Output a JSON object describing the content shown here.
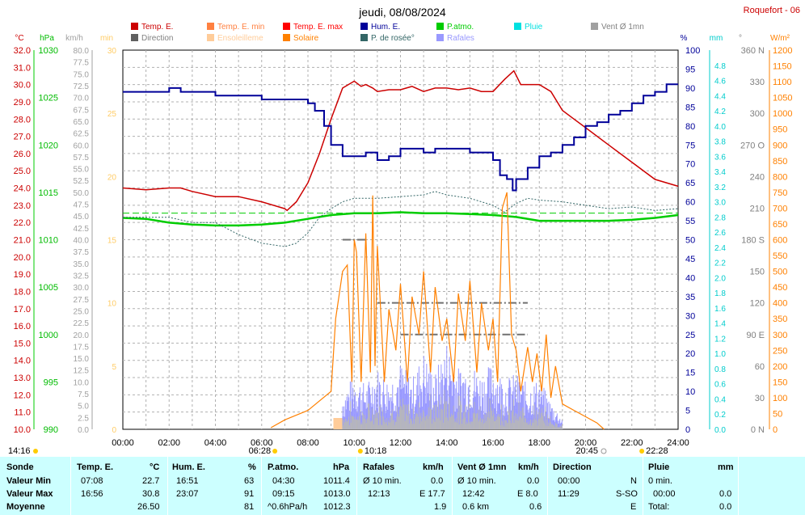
{
  "chart_data": {
    "type": "line",
    "title": "jeudi, 08/08/2024",
    "station": "Roquefort - 06",
    "x_range": [
      "00:00",
      "24:00"
    ],
    "x_ticks": [
      "00:00",
      "02:00",
      "04:00",
      "06:00",
      "08:00",
      "10:00",
      "12:00",
      "14:00",
      "16:00",
      "18:00",
      "20:00",
      "22:00",
      "24:00"
    ],
    "axes": {
      "temp": {
        "unit": "°C",
        "range": [
          10,
          32
        ],
        "ticks": [
          "32.0",
          "31.0",
          "30.0",
          "29.0",
          "28.0",
          "27.0",
          "26.0",
          "25.0",
          "24.0",
          "23.0",
          "22.0",
          "21.0",
          "20.0",
          "19.0",
          "18.0",
          "17.0",
          "16.0",
          "15.0",
          "14.0",
          "13.0",
          "12.0",
          "11.0",
          "10.0"
        ]
      },
      "pressure": {
        "unit": "hPa",
        "range": [
          990,
          1030
        ],
        "ticks": [
          "1030",
          "1025",
          "1020",
          "1015",
          "1010",
          "1005",
          "1000",
          "995",
          "990"
        ]
      },
      "wind": {
        "unit": "km/h",
        "range": [
          0,
          80
        ],
        "ticks": [
          "80.0",
          "77.5",
          "75.0",
          "72.5",
          "70.0",
          "67.5",
          "65.0",
          "62.5",
          "60.0",
          "57.5",
          "55.0",
          "52.5",
          "50.0",
          "47.5",
          "45.0",
          "42.5",
          "40.0",
          "37.5",
          "35.0",
          "32.5",
          "30.0",
          "27.5",
          "25.0",
          "22.5",
          "20.0",
          "17.5",
          "15.0",
          "12.5",
          "10.0",
          "7.5",
          "5.0",
          "2.5",
          "0.0"
        ]
      },
      "sunshine_min": {
        "unit": "min",
        "range": [
          0,
          30
        ],
        "ticks": [
          "30",
          "25",
          "20",
          "15",
          "10",
          "5",
          "0"
        ]
      },
      "humidity": {
        "unit": "%",
        "range": [
          0,
          100
        ],
        "ticks": [
          "100",
          "95",
          "90",
          "85",
          "80",
          "75",
          "70",
          "65",
          "60",
          "55",
          "50",
          "45",
          "40",
          "35",
          "30",
          "25",
          "20",
          "15",
          "10",
          "5",
          "0"
        ]
      },
      "rain": {
        "unit": "mm",
        "range": [
          0,
          5
        ],
        "ticks": [
          "4.8",
          "4.6",
          "4.4",
          "4.2",
          "4.0",
          "3.8",
          "3.6",
          "3.4",
          "3.2",
          "3.0",
          "2.8",
          "2.6",
          "2.4",
          "2.2",
          "2.0",
          "1.8",
          "1.6",
          "1.4",
          "1.2",
          "1.0",
          "0.8",
          "0.6",
          "0.4",
          "0.2",
          "0.0"
        ]
      },
      "direction": {
        "unit": "°",
        "ticks": [
          "360 N",
          "330",
          "300",
          "270 O",
          "240",
          "210",
          "180 S",
          "150",
          "120",
          "90 E",
          "60",
          "30",
          "0 N"
        ]
      },
      "solar": {
        "unit": "W/m²",
        "range": [
          0,
          1200
        ],
        "ticks": [
          "1200",
          "1150",
          "1100",
          "1050",
          "1000",
          "950",
          "900",
          "850",
          "800",
          "750",
          "700",
          "650",
          "600",
          "550",
          "500",
          "450",
          "400",
          "350",
          "300",
          "250",
          "200",
          "150",
          "100",
          "50",
          "0"
        ]
      }
    },
    "legend": [
      {
        "label": "Temp. E.",
        "color": "#cc0000"
      },
      {
        "label": "Temp. E. min",
        "color": "#ff8040"
      },
      {
        "label": "Temp. E. max",
        "color": "#ff0000"
      },
      {
        "label": "Hum. E.",
        "color": "#000099"
      },
      {
        "label": "P.atmo.",
        "color": "#00cc00"
      },
      {
        "label": "Pluie",
        "color": "#00e0e0"
      },
      {
        "label": "Vent Ø 1mn",
        "color": "#a0a0a0"
      },
      {
        "label": "Direction",
        "color": "#606060"
      },
      {
        "label": "Ensoleilleme",
        "color": "#ffcc99"
      },
      {
        "label": "Solaire",
        "color": "#ff8000"
      },
      {
        "label": "P. de rosée°",
        "color": "#336666"
      },
      {
        "label": "Rafales",
        "color": "#9999ff"
      }
    ],
    "series": [
      {
        "name": "Temp. E.",
        "axis": "temp",
        "color": "#cc0000",
        "x": [
          0,
          1,
          2,
          2.5,
          3,
          4,
          5,
          6,
          7,
          7.1,
          7.5,
          8,
          8.5,
          9,
          9.5,
          10,
          10.3,
          10.5,
          10.8,
          11,
          11.5,
          12,
          12.5,
          13,
          13.5,
          14,
          14.5,
          15,
          15.5,
          16,
          16.5,
          16.9,
          17.2,
          17.5,
          18,
          18.5,
          19,
          19.5,
          20,
          21,
          22,
          23,
          24
        ],
        "y": [
          24.0,
          23.9,
          24.0,
          24.0,
          23.8,
          23.5,
          23.5,
          23.2,
          22.8,
          22.7,
          23.2,
          24.3,
          26.0,
          28.0,
          29.8,
          30.2,
          29.9,
          30.0,
          29.8,
          29.6,
          29.7,
          29.7,
          29.9,
          29.6,
          29.8,
          29.8,
          29.7,
          29.8,
          29.6,
          29.6,
          30.3,
          30.8,
          30.0,
          30.0,
          30.0,
          29.6,
          28.5,
          28.0,
          27.5,
          26.5,
          25.5,
          24.5,
          24.1
        ]
      },
      {
        "name": "Hum. E.",
        "axis": "humidity",
        "color": "#000099",
        "x": [
          0,
          1,
          1.8,
          2,
          2.5,
          3,
          3.5,
          4,
          5,
          6,
          7,
          8,
          8.3,
          8.7,
          9,
          9.5,
          10,
          10.5,
          11,
          11.5,
          12,
          12.5,
          13,
          13.5,
          14,
          14.5,
          15,
          15.5,
          16,
          16.3,
          16.6,
          16.85,
          17,
          17.5,
          18,
          18.5,
          19,
          19.5,
          20,
          20.5,
          21,
          21.5,
          22,
          22.5,
          23,
          23.5,
          24
        ],
        "y": [
          89,
          89,
          89,
          90,
          89,
          89,
          89,
          88,
          88,
          87,
          87,
          86,
          84,
          80,
          75,
          72,
          72,
          73,
          71,
          72,
          74,
          74,
          73,
          74,
          74,
          74,
          73,
          73,
          71,
          67,
          66,
          63,
          66,
          69,
          72,
          73,
          75,
          77,
          80,
          81,
          83,
          84,
          86,
          88,
          89,
          91,
          91
        ]
      },
      {
        "name": "P.atmo.",
        "axis": "pressure",
        "color": "#00cc00",
        "x": [
          0,
          1,
          2,
          3,
          4,
          5,
          6,
          7,
          8,
          9,
          10,
          11,
          12,
          13,
          14,
          15,
          16,
          17,
          18,
          19,
          20,
          21,
          22,
          23,
          24
        ],
        "y": [
          1012.3,
          1012.2,
          1011.8,
          1011.6,
          1011.5,
          1011.5,
          1011.6,
          1011.8,
          1012.2,
          1012.6,
          1012.8,
          1012.8,
          1012.9,
          1012.8,
          1012.8,
          1012.7,
          1012.6,
          1012.4,
          1012.0,
          1012.0,
          1012.0,
          1012.0,
          1012.1,
          1012.3,
          1012.6
        ]
      },
      {
        "name": "P. de rosée°",
        "axis": "temp",
        "color": "#336666",
        "x": [
          0,
          1,
          2,
          3,
          4,
          5,
          6,
          7,
          7.5,
          8,
          8.5,
          9,
          9.5,
          10,
          11,
          12,
          13,
          13.5,
          14,
          15,
          16,
          16.5,
          17,
          17.5,
          18,
          19,
          20,
          21,
          22,
          23,
          24
        ],
        "y": [
          22.3,
          22.3,
          22.3,
          22.0,
          22.0,
          21.3,
          20.8,
          20.6,
          20.8,
          21.4,
          22.3,
          22.8,
          23.2,
          23.4,
          23.4,
          23.5,
          23.6,
          23.8,
          23.6,
          23.4,
          23.0,
          22.6,
          23.1,
          23.4,
          23.3,
          23.2,
          23.0,
          22.8,
          22.9,
          22.7,
          22.8
        ]
      },
      {
        "name": "Solaire",
        "axis": "solar",
        "color": "#ff8000",
        "x": [
          6.4,
          7,
          8,
          9,
          9.2,
          9.5,
          9.7,
          9.9,
          10.0,
          10.1,
          10.3,
          10.5,
          10.7,
          10.8,
          10.9,
          11.0,
          11.3,
          11.5,
          11.8,
          12.0,
          12.3,
          12.5,
          12.8,
          13.0,
          13.3,
          13.5,
          13.8,
          14.0,
          14.3,
          14.5,
          14.8,
          15.0,
          15.3,
          15.5,
          15.8,
          16.0,
          16.2,
          16.4,
          16.6,
          16.8,
          17.0,
          17.2,
          17.5,
          17.7,
          17.9,
          18.1,
          18.3,
          18.5,
          18.7,
          19,
          19.5,
          20,
          20.5,
          20.8
        ],
        "y": [
          5,
          30,
          60,
          120,
          350,
          500,
          520,
          150,
          600,
          560,
          150,
          620,
          180,
          740,
          200,
          580,
          150,
          380,
          250,
          460,
          150,
          420,
          300,
          500,
          180,
          450,
          280,
          350,
          150,
          430,
          280,
          470,
          180,
          400,
          250,
          350,
          150,
          700,
          750,
          300,
          250,
          120,
          260,
          150,
          240,
          120,
          300,
          100,
          200,
          80,
          60,
          40,
          20,
          0
        ]
      },
      {
        "name": "Rafales",
        "axis": "wind",
        "color": "#9999ff",
        "x": [
          9.5,
          10,
          10.5,
          11,
          11.5,
          12,
          12.5,
          13,
          13.5,
          14,
          14.5,
          15,
          15.5,
          16,
          16.5,
          17,
          17.5,
          18,
          18.5,
          19
        ],
        "y": [
          6.5,
          10,
          8,
          11,
          9,
          12,
          9,
          14,
          10,
          16,
          11,
          12,
          10,
          12,
          9,
          10,
          8,
          9,
          5,
          2
        ]
      }
    ],
    "reference_line": {
      "name": "P.atmo. reference",
      "axis": "pressure",
      "value": 1012.8,
      "color": "#00cc00"
    },
    "sun_markers": {
      "sunrise": "06:28",
      "sunset": "20:45",
      "noon": "10:18",
      "moonset": "22:28",
      "left_time": "14:16"
    }
  },
  "summary": {
    "sonde": {
      "header": "Sonde",
      "rows": [
        "Valeur Min",
        "Valeur Max",
        "Moyenne"
      ]
    },
    "temp": {
      "header": "Temp. E.",
      "unit": "°C",
      "min_time": "07:08",
      "min": "22.7",
      "max_time": "16:56",
      "max": "30.8",
      "avg": "26.50"
    },
    "hum": {
      "header": "Hum. E.",
      "unit": "%",
      "min_time": "16:51",
      "min": "63",
      "max_time": "23:07",
      "max": "91",
      "avg": "81"
    },
    "patmo": {
      "header": "P.atmo.",
      "unit": "hPa",
      "min_time": "04:30",
      "min": "1011.4",
      "max_time": "09:15",
      "max": "1013.0",
      "avg_label": "^0.6hPa/h",
      "avg": "1012.3"
    },
    "rafales": {
      "header": "Rafales",
      "unit": "km/h",
      "min_label": "Ø 10 min.",
      "min": "0.0",
      "max_time": "12:13",
      "max": "E 17.7",
      "avg": "1.9"
    },
    "vent": {
      "header": "Vent Ø 1mn",
      "unit": "km/h",
      "min_label": "Ø 10 min.",
      "min": "0.0",
      "max_time": "12:42",
      "max": "E 8.0",
      "avg_label": "0.6 km",
      "avg": "0.6"
    },
    "direction": {
      "header": "Direction",
      "min_time": "00:00",
      "min": "N",
      "max_time": "11:29",
      "max": "S-SO",
      "avg": "E"
    },
    "pluie": {
      "header": "Pluie",
      "unit": "mm",
      "min_label": "0 min.",
      "max_time": "00:00",
      "max": "0.0",
      "avg_label": "Total:",
      "avg": "0.0"
    }
  }
}
